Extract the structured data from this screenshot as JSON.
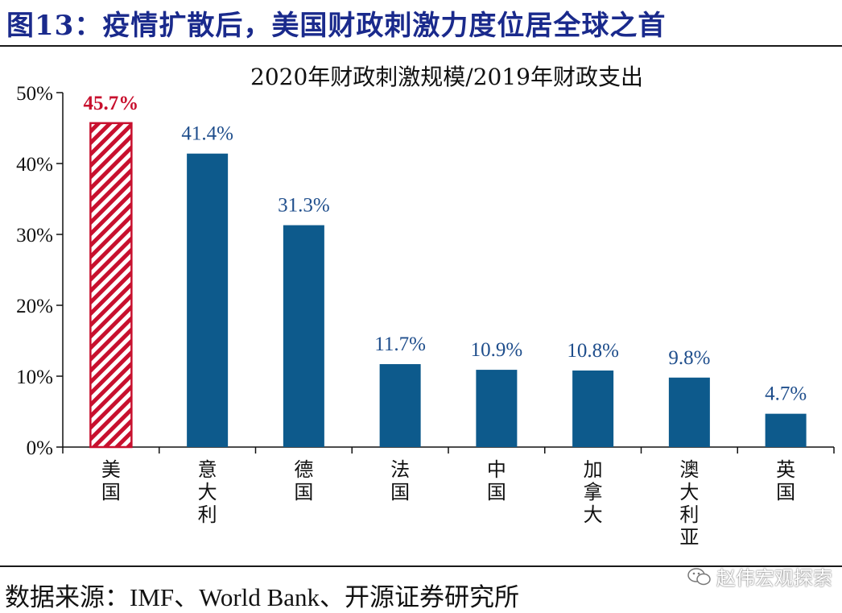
{
  "figure": {
    "title": "图13：疫情扩散后，美国财政刺激力度位居全球之首",
    "source": "数据来源：IMF、World Bank、开源证券研究所",
    "watermark": "赵伟宏观探索",
    "watermark_icon": "wechat-icon"
  },
  "chart_data": {
    "type": "bar",
    "title": "2020年财政刺激规模/2019年财政支出",
    "xlabel": "",
    "ylabel": "",
    "ylim": [
      0,
      50
    ],
    "yticks": [
      "0%",
      "10%",
      "20%",
      "30%",
      "40%",
      "50%"
    ],
    "ytick_values": [
      0,
      10,
      20,
      30,
      40,
      50
    ],
    "categories": [
      "美国",
      "意大利",
      "德国",
      "法国",
      "中国",
      "加拿大",
      "澳大利亚",
      "英国"
    ],
    "values": [
      45.7,
      41.4,
      31.3,
      11.7,
      10.9,
      10.8,
      9.8,
      4.7
    ],
    "labels": [
      "45.7%",
      "41.4%",
      "31.3%",
      "11.7%",
      "10.9%",
      "10.8%",
      "9.8%",
      "4.7%"
    ],
    "highlight_index": 0,
    "colors": {
      "bar": "#0d5a8c",
      "highlight": "#c8102e",
      "label": "#1f4e8c",
      "highlight_label": "#c8102e",
      "title_text": "#1a2a8c"
    }
  }
}
